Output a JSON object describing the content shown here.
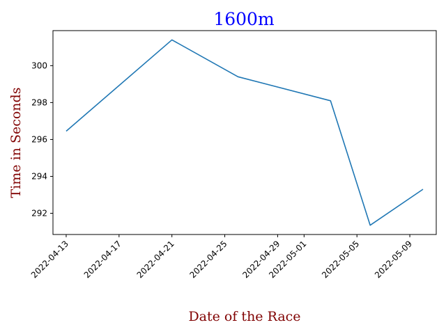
{
  "chart_data": {
    "type": "line",
    "title": "1600m",
    "xlabel": "Date of the Race",
    "ylabel": "Time in Seconds",
    "x": [
      "2022-04-13",
      "2022-04-21",
      "2022-04-26",
      "2022-05-03",
      "2022-05-06",
      "2022-05-10"
    ],
    "series": [
      {
        "values": [
          296.45,
          301.4,
          299.4,
          298.1,
          291.35,
          293.3
        ]
      }
    ],
    "x_ticks": [
      "2022-04-13",
      "2022-04-17",
      "2022-04-21",
      "2022-04-25",
      "2022-04-29",
      "2022-05-01",
      "2022-05-05",
      "2022-05-09"
    ],
    "y_ticks": [
      292,
      294,
      296,
      298,
      300
    ],
    "xlim": [
      "2022-04-12",
      "2022-05-11"
    ],
    "ylim": [
      290.85,
      301.9
    ],
    "grid": false,
    "colors": {
      "line": "#1f77b4",
      "title": "#0000ff",
      "axis_label": "#800000",
      "axes": "#000000"
    }
  }
}
